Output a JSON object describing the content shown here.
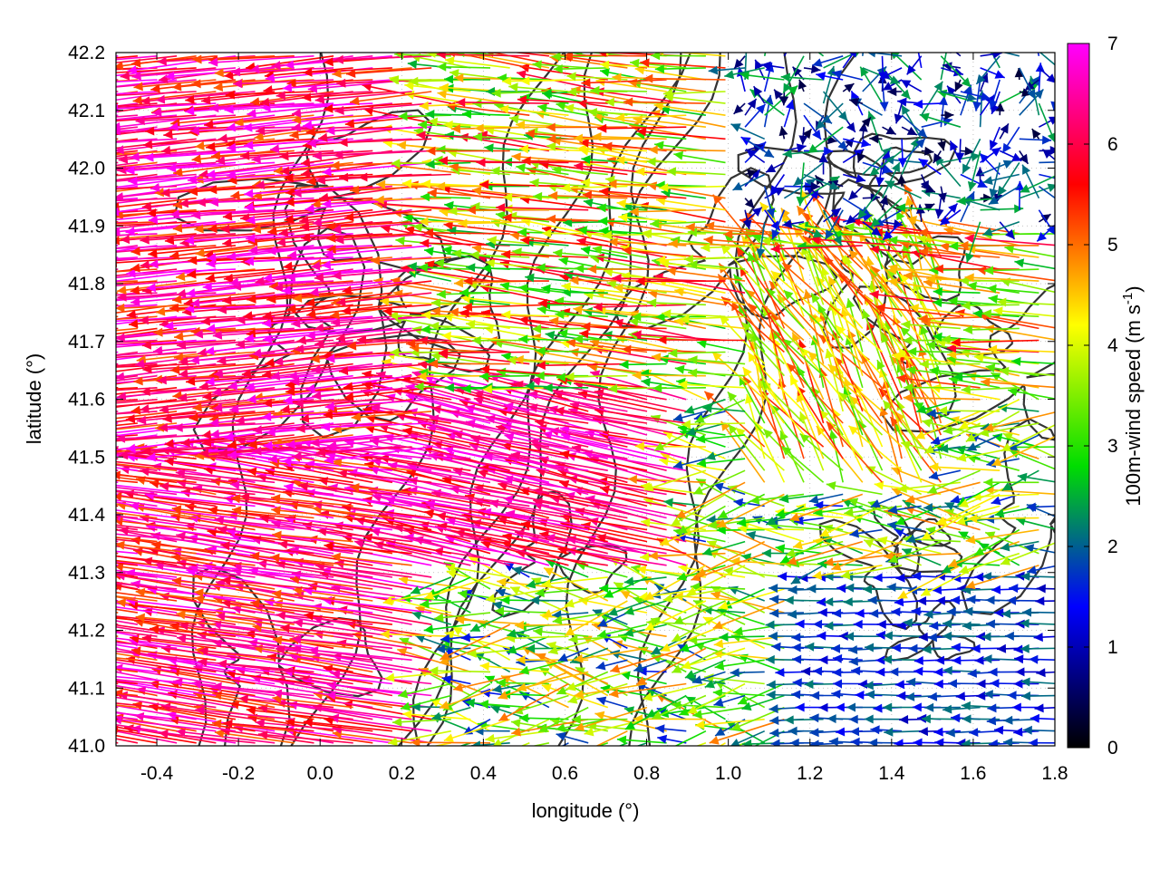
{
  "chart_data": {
    "type": "vector-field",
    "xlabel": "longitude (°)",
    "ylabel": "latitude (°)",
    "xlim": [
      -0.5,
      1.8
    ],
    "ylim": [
      41.0,
      42.2
    ],
    "x_ticks": [
      -0.4,
      -0.2,
      0.0,
      0.2,
      0.4,
      0.6,
      0.8,
      1.0,
      1.2,
      1.4,
      1.6,
      1.8
    ],
    "x_tick_labels": [
      "-0.4",
      "-0.2",
      "0.0",
      "0.2",
      "0.4",
      "0.6",
      "0.8",
      "1.0",
      "1.2",
      "1.4",
      "1.6",
      "1.8"
    ],
    "y_ticks": [
      41.0,
      41.1,
      41.2,
      41.3,
      41.4,
      41.5,
      41.6,
      41.7,
      41.8,
      41.9,
      42.0,
      42.1,
      42.2
    ],
    "y_tick_labels": [
      "41.0",
      "41.1",
      "41.2",
      "41.3",
      "41.4",
      "41.5",
      "41.6",
      "41.7",
      "41.8",
      "41.9",
      "42.0",
      "42.1",
      "42.2"
    ],
    "grid": "dotted",
    "colorbar": {
      "label_main": "100m-wind speed (m s",
      "label_sup": "-1",
      "label_end": ")",
      "range": [
        0,
        7
      ],
      "ticks": [
        "0",
        "1",
        "2",
        "3",
        "4",
        "5",
        "6",
        "7"
      ],
      "stops": [
        "#000000",
        "#0000ff",
        "#00dd00",
        "#ffff00",
        "#ff0000",
        "#ff00ff"
      ]
    },
    "wind_regimes": [
      {
        "region": "west lon<0.3",
        "direction": "westward",
        "speed_range": [
          5,
          7
        ]
      },
      {
        "region": "central band lat 41.3-41.6",
        "direction": "west-northwest",
        "speed_range": [
          6,
          7
        ]
      },
      {
        "region": "northeast lon>1.0 lat>41.9",
        "direction": "variable",
        "speed_range": [
          0.3,
          2.5
        ]
      },
      {
        "region": "southeast lon>1.2 lat<41.3",
        "direction": "westward",
        "speed_range": [
          1,
          2
        ]
      },
      {
        "region": "east-central lon 1.1-1.5 lat 41.5-41.8",
        "direction": "north-northwest",
        "speed_range": [
          3,
          5
        ]
      }
    ],
    "contours": "terrain elevation lines (dark gray)"
  }
}
